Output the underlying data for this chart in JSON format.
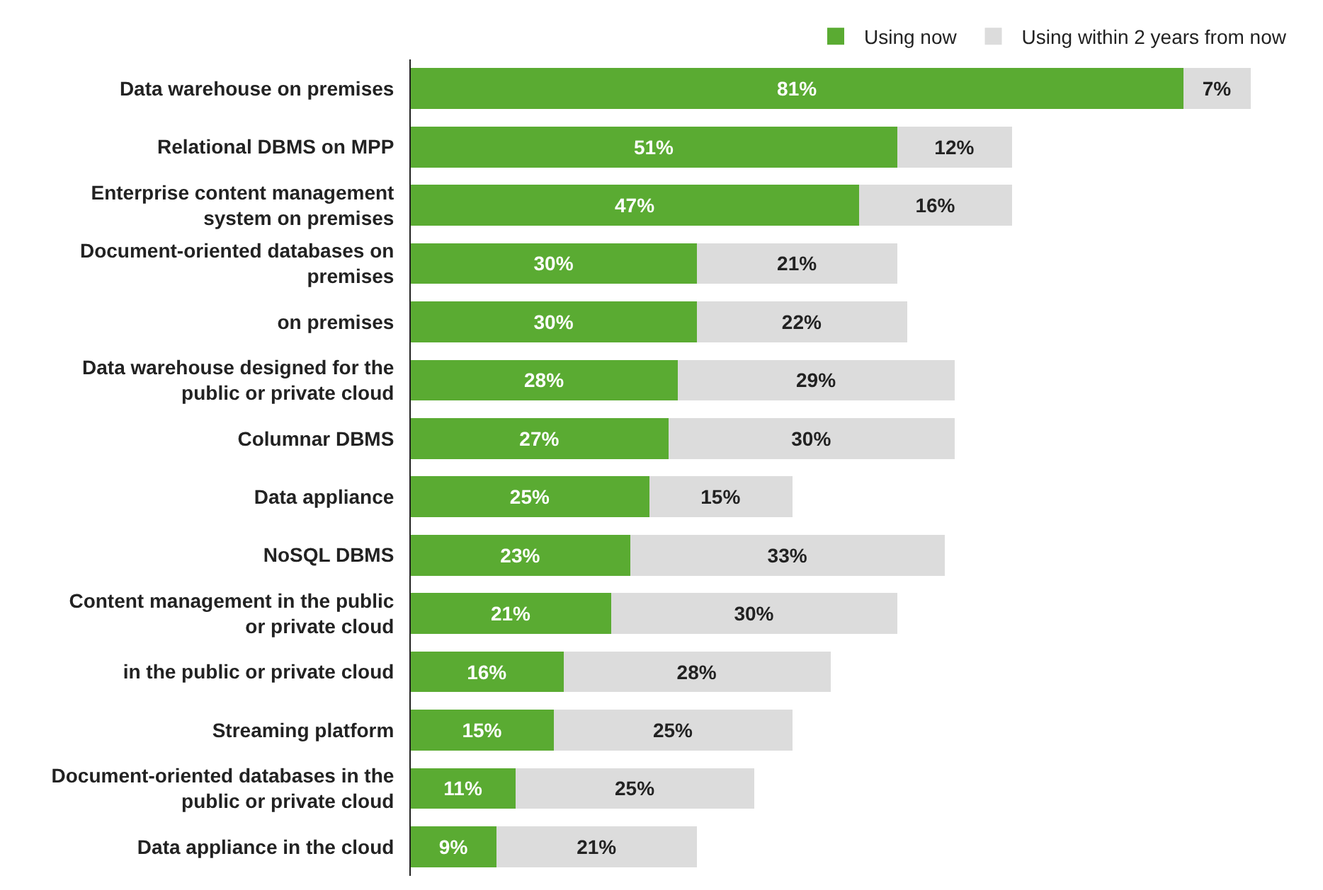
{
  "chart_data": {
    "type": "bar",
    "orientation": "horizontal",
    "stacked": true,
    "legend": "top right",
    "tick_labels": "y",
    "categories": [
      "Data warehouse on premises",
      "Relational DBMS on MPP",
      "Enterprise content management system on premises",
      "Document-oriented databases on premises",
      "on premises",
      "Data warehouse designed for the public or private cloud",
      "Columnar DBMS",
      "Data appliance",
      "NoSQL DBMS",
      "Content management in the public or private cloud",
      "in the public or private cloud",
      "Streaming platform",
      "Document-oriented databases in the public or private cloud",
      "Data appliance in the cloud"
    ],
    "series": [
      {
        "name": "Using now",
        "color": "#5aab32",
        "values": [
          81,
          51,
          47,
          30,
          30,
          28,
          27,
          25,
          23,
          21,
          16,
          15,
          11,
          9
        ],
        "value_labels": [
          "81%",
          "51%",
          "47%",
          "30%",
          "30%",
          "28%",
          "27%",
          "25%",
          "23%",
          "21%",
          "16%",
          "15%",
          "11%",
          "9%"
        ]
      },
      {
        "name": "Using within 2 years from now",
        "color": "#dcdcdc",
        "values": [
          7,
          12,
          16,
          21,
          22,
          29,
          30,
          15,
          33,
          30,
          28,
          25,
          25,
          21
        ],
        "value_labels": [
          "7%",
          "12%",
          "16%",
          "21%",
          "22%",
          "29%",
          "30%",
          "15%",
          "33%",
          "30%",
          "28%",
          "25%",
          "25%",
          "21%"
        ]
      }
    ]
  }
}
